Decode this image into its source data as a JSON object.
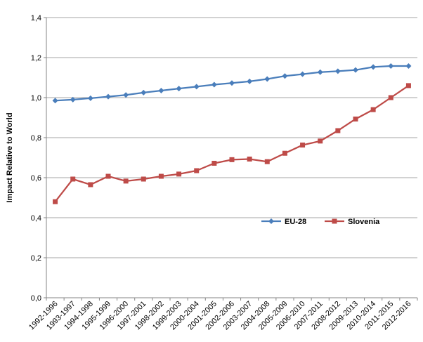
{
  "chart_data": {
    "type": "line",
    "title": "",
    "xlabel": "",
    "ylabel": "Impact Relative to World",
    "ylim": [
      0,
      1.4
    ],
    "y_ticks": [
      "0,0",
      "0,2",
      "0,4",
      "0,6",
      "0,8",
      "1,0",
      "1,2",
      "1,4"
    ],
    "y_tick_values": [
      0,
      0.2,
      0.4,
      0.6,
      0.8,
      1.0,
      1.2,
      1.4
    ],
    "grid": "horizontal",
    "legend_position": "lower-right",
    "categories": [
      "1992-1996",
      "1993-1997",
      "1994-1998",
      "1995-1999",
      "1996-2000",
      "1997-2001",
      "1998-2002",
      "1999-2003",
      "2000-2004",
      "2001-2005",
      "2002-2006",
      "2003-2007",
      "2004-2008",
      "2005-2009",
      "2006-2010",
      "2007-2011",
      "2008-2012",
      "2009-2013",
      "2010-2014",
      "2011-2015",
      "2012-2016"
    ],
    "series": [
      {
        "name": "EU-28",
        "color": "#4a7ebb",
        "marker": "diamond",
        "values": [
          0.985,
          0.99,
          0.997,
          1.005,
          1.013,
          1.025,
          1.035,
          1.045,
          1.055,
          1.065,
          1.073,
          1.081,
          1.093,
          1.108,
          1.117,
          1.127,
          1.132,
          1.138,
          1.153,
          1.158,
          1.158
        ]
      },
      {
        "name": "Slovenia",
        "color": "#be4b48",
        "marker": "square",
        "values": [
          0.48,
          0.593,
          0.565,
          0.607,
          0.583,
          0.593,
          0.607,
          0.618,
          0.635,
          0.672,
          0.69,
          0.693,
          0.68,
          0.722,
          0.763,
          0.783,
          0.835,
          0.893,
          0.94,
          1.0,
          1.06
        ]
      }
    ]
  }
}
